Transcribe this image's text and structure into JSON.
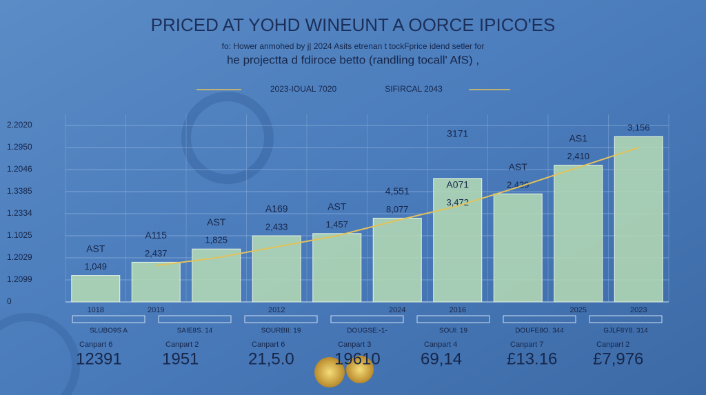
{
  "chart_data": {
    "type": "bar",
    "title": "PRICED AT YOHD WINEUNT A OORCE IPICO'ES",
    "subtitle": [
      "fo: Hower anmohed by j| 2024 Asits etrenan t tockFprice idend setler for",
      "he projectta d fdiroce betto (randling tocall' AfS) ,"
    ],
    "annotations": [
      "2023-IOUAL 7020",
      "SIFIRCAL 2043"
    ],
    "categories": [
      "1018",
      "2019",
      null,
      "2012",
      null,
      "2024",
      "2016",
      null,
      "2025",
      "2023"
    ],
    "values": [
      1.2,
      1.8,
      2.4,
      3.0,
      3.1,
      3.8,
      5.6,
      4.9,
      6.2,
      7.5
    ],
    "bar_labels": [
      [
        "AST",
        "1,049"
      ],
      [
        "A115",
        "2,437"
      ],
      [
        "AST",
        "1,825"
      ],
      [
        "A169",
        "2,433"
      ],
      [
        "AST",
        "1,457"
      ],
      [
        "4,551",
        "8,077"
      ],
      [
        "3171",
        "A071",
        "3,472"
      ],
      [
        "AST",
        "2,429"
      ],
      [
        "AS1",
        "2,410"
      ],
      [
        "3,156"
      ]
    ],
    "trend": {
      "color": "#e2c35c",
      "values": [
        null,
        1.65,
        2.0,
        2.5,
        3.0,
        3.7,
        4.35,
        5.2,
        6.1,
        7.0
      ]
    },
    "color": "#b6dcb4",
    "ylim": [
      0,
      8.5
    ],
    "yticks": [
      0,
      {
        "value": 1,
        "label": "1.2099"
      },
      {
        "value": 2,
        "label": "1.2029"
      },
      {
        "value": 3,
        "label": "1.1025"
      },
      {
        "value": 4,
        "label": "1.2334"
      },
      {
        "value": 5,
        "label": "1.3385"
      },
      {
        "value": 6,
        "label": "1.2046"
      },
      {
        "value": 7,
        "label": "1.2950"
      },
      {
        "value": 8,
        "label": "2.2020"
      }
    ],
    "grid": true
  },
  "footer": {
    "bands": [
      "SLUBO9S A",
      "SAIE8S. 14",
      "SOURBII: 19",
      "DOUGSE:-1-",
      "SOUI: 19",
      "DOUFE8O. 344",
      "GJLF8Y8. 314"
    ],
    "cards": [
      {
        "label": "Canpart 6",
        "value": "12391"
      },
      {
        "label": "Canpart 2",
        "value": "1951"
      },
      {
        "label": "Canpart 6",
        "value": "21,5.0"
      },
      {
        "label": "Canpart 3",
        "value": "19610"
      },
      {
        "label": "Canpart 4",
        "value": "69,14"
      },
      {
        "label": "Canpart 7",
        "value": "£13.16"
      },
      {
        "label": "Canpart 2",
        "value": "£7,976"
      }
    ]
  }
}
